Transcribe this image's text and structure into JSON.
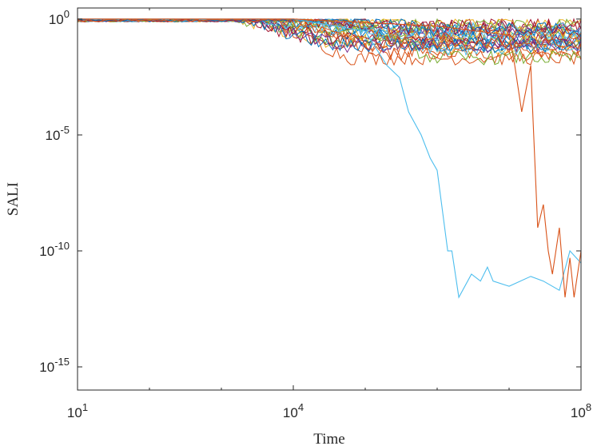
{
  "chart_data": {
    "type": "line",
    "xscale": "log",
    "yscale": "log",
    "xlabel": "Time",
    "ylabel": "SALI",
    "xlim": [
      10,
      100000000
    ],
    "ylim": [
      1e-16,
      3
    ],
    "xticks": [
      {
        "base": "10",
        "exp": "1"
      },
      {
        "base": "10",
        "exp": "4"
      },
      {
        "base": "10",
        "exp": "8"
      }
    ],
    "yticks": [
      {
        "base": "10",
        "exp": "0"
      },
      {
        "base": "10",
        "exp": "-5"
      },
      {
        "base": "10",
        "exp": "-10"
      },
      {
        "base": "10",
        "exp": "-15"
      }
    ],
    "grid": false,
    "legend": "none",
    "bundle": {
      "count": 30,
      "colors": [
        "#0072bd",
        "#d95319",
        "#edb120",
        "#7e2f8e",
        "#77ac30",
        "#4dbeee",
        "#a2142f"
      ],
      "plateau_value": 1,
      "spread_start_time": 10000,
      "final_value_range": [
        0.02,
        1
      ]
    },
    "series": [
      {
        "color": "#4dbeee",
        "x": [
          10,
          1000,
          10000,
          100000,
          200000,
          300000,
          400000,
          600000,
          800000,
          1000000,
          1400000,
          1600000,
          2000000,
          3000000,
          4000000,
          5000000,
          6000000,
          10000000,
          20000000,
          30000000,
          50000000,
          70000000,
          100000000
        ],
        "y": [
          1,
          1,
          1,
          0.3,
          0.01,
          0.003,
          0.0001,
          1e-05,
          1e-06,
          3e-07,
          1e-10,
          1e-10,
          1e-12,
          1e-11,
          5e-12,
          2e-11,
          5e-12,
          3e-12,
          8e-12,
          5e-12,
          2e-12,
          1e-10,
          3e-11
        ]
      },
      {
        "color": "#d95319",
        "x": [
          10,
          1000,
          10000,
          1000000,
          10000000,
          12000000,
          15000000,
          20000000,
          22000000,
          25000000,
          30000000,
          35000000,
          40000000,
          50000000,
          60000000,
          70000000,
          80000000,
          100000000
        ],
        "y": [
          1,
          1,
          1,
          0.5,
          0.2,
          0.01,
          0.0001,
          0.01,
          1e-05,
          1e-09,
          1e-08,
          1e-10,
          1e-11,
          1e-09,
          1e-12,
          5e-11,
          1e-12,
          1e-10
        ]
      }
    ]
  }
}
